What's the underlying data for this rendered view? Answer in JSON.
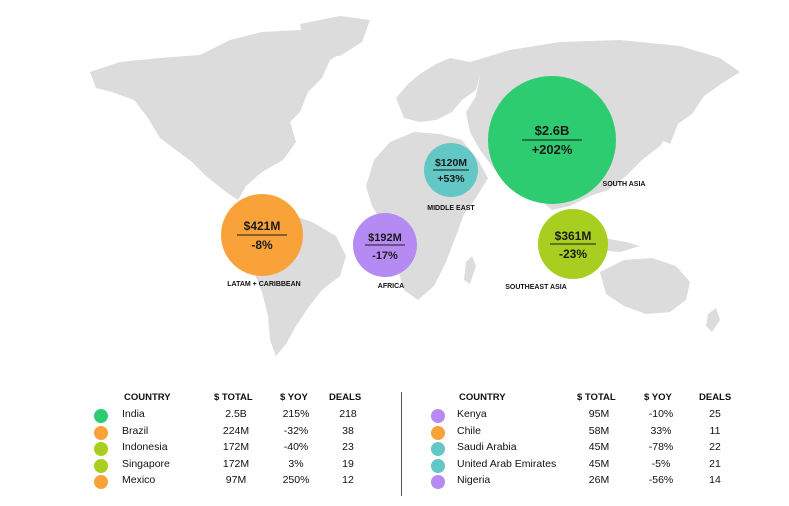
{
  "colors": {
    "land": "#dcdcdc",
    "green": "#2ecc71",
    "orange": "#f9a23a",
    "lime": "#a8cf1f",
    "teal": "#62c7c5",
    "purple": "#b58af2"
  },
  "map": {
    "regions": [
      {
        "id": "south-asia",
        "value": "$2.6B",
        "change": "+202%",
        "label": "SOUTH ASIA",
        "color": "green"
      },
      {
        "id": "middle-east",
        "value": "$120M",
        "change": "+53%",
        "label": "MIDDLE EAST",
        "color": "teal"
      },
      {
        "id": "latam",
        "value": "$421M",
        "change": "-8%",
        "label": "LATAM + CARIBBEAN",
        "color": "orange"
      },
      {
        "id": "africa",
        "value": "$192M",
        "change": "-17%",
        "label": "AFRICA",
        "color": "purple"
      },
      {
        "id": "southeast-asia",
        "value": "$361M",
        "change": "-23%",
        "label": "SOUTHEAST ASIA",
        "color": "lime"
      }
    ]
  },
  "table": {
    "headers": {
      "country": "COUNTRY",
      "total": "$ TOTAL",
      "yoy": "$ YOY",
      "deals": "DEALS"
    },
    "left": [
      {
        "country": "India",
        "total": "2.5B",
        "yoy": "215%",
        "deals": "218",
        "color": "green"
      },
      {
        "country": "Brazil",
        "total": "224M",
        "yoy": "-32%",
        "deals": "38",
        "color": "orange"
      },
      {
        "country": "Indonesia",
        "total": "172M",
        "yoy": "-40%",
        "deals": "23",
        "color": "lime"
      },
      {
        "country": "Singapore",
        "total": "172M",
        "yoy": "3%",
        "deals": "19",
        "color": "lime"
      },
      {
        "country": "Mexico",
        "total": "97M",
        "yoy": "250%",
        "deals": "12",
        "color": "orange"
      }
    ],
    "right": [
      {
        "country": "Kenya",
        "total": "95M",
        "yoy": "-10%",
        "deals": "25",
        "color": "purple"
      },
      {
        "country": "Chile",
        "total": "58M",
        "yoy": "33%",
        "deals": "11",
        "color": "orange"
      },
      {
        "country": "Saudi Arabia",
        "total": "45M",
        "yoy": "-78%",
        "deals": "22",
        "color": "teal"
      },
      {
        "country": "United Arab Emirates",
        "total": "45M",
        "yoy": "-5%",
        "deals": "21",
        "color": "teal"
      },
      {
        "country": "Nigeria",
        "total": "26M",
        "yoy": "-56%",
        "deals": "14",
        "color": "purple"
      }
    ]
  }
}
